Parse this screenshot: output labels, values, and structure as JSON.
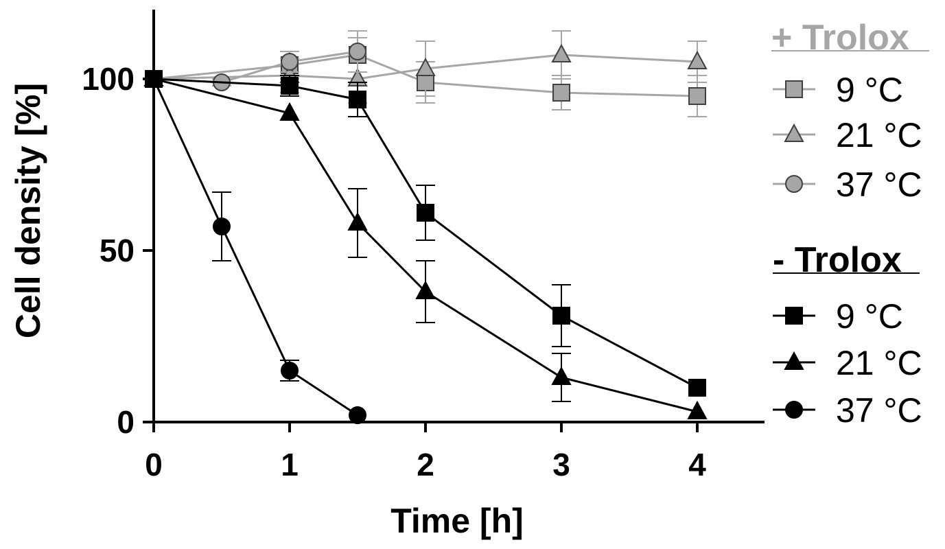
{
  "chart_data": {
    "type": "line",
    "title": "",
    "xlabel": "Time [h]",
    "ylabel": "Cell density [%]",
    "xlim": [
      0,
      4.5
    ],
    "ylim": [
      0,
      120
    ],
    "x_ticks": [
      "0",
      "1",
      "2",
      "3",
      "4"
    ],
    "y_ticks": [
      "0",
      "50",
      "100"
    ],
    "grid": false,
    "legend_placement": "right",
    "colors": {
      "with_trolox": "#a6a6a6",
      "without_trolox": "#000000"
    },
    "legend_groups": [
      {
        "heading": "+ Trolox",
        "items": [
          "9 °C",
          "21 °C",
          "37 °C"
        ]
      },
      {
        "heading": "- Trolox",
        "items": [
          "9 °C",
          "21 °C",
          "37 °C"
        ]
      }
    ],
    "series": [
      {
        "group": "+ Trolox",
        "name": "9 °C",
        "marker": "square",
        "color": "#a6a6a6",
        "x": [
          0,
          1,
          1.5,
          2,
          3,
          4
        ],
        "y": [
          100,
          104,
          107,
          99,
          96,
          95
        ],
        "err": [
          0,
          4,
          5,
          6,
          5,
          6
        ]
      },
      {
        "group": "+ Trolox",
        "name": "21 °C",
        "marker": "triangle",
        "color": "#a6a6a6",
        "x": [
          0,
          1,
          1.5,
          2,
          3,
          4
        ],
        "y": [
          100,
          101,
          100,
          103,
          107,
          105
        ],
        "err": [
          0,
          5,
          7,
          8,
          7,
          6
        ]
      },
      {
        "group": "+ Trolox",
        "name": "37 °C",
        "marker": "circle",
        "color": "#a6a6a6",
        "x": [
          0,
          0.5,
          1,
          1.5
        ],
        "y": [
          100,
          99,
          105,
          108
        ],
        "err": [
          0,
          1,
          3,
          6
        ]
      },
      {
        "group": "- Trolox",
        "name": "9 °C",
        "marker": "square",
        "color": "#000000",
        "x": [
          0,
          1,
          1.5,
          2,
          3,
          4
        ],
        "y": [
          100,
          98,
          94,
          61,
          31,
          10
        ],
        "err": [
          0,
          3,
          5,
          8,
          9,
          0
        ]
      },
      {
        "group": "- Trolox",
        "name": "21 °C",
        "marker": "triangle",
        "color": "#000000",
        "x": [
          0,
          1,
          1.5,
          2,
          3,
          4
        ],
        "y": [
          100,
          90,
          58,
          38,
          13,
          3
        ],
        "err": [
          0,
          0,
          10,
          9,
          7,
          0
        ]
      },
      {
        "group": "- Trolox",
        "name": "37 °C",
        "marker": "circle",
        "color": "#000000",
        "x": [
          0,
          0.5,
          1,
          1.5
        ],
        "y": [
          100,
          57,
          15,
          2
        ],
        "err": [
          0,
          10,
          3,
          0
        ]
      }
    ]
  }
}
